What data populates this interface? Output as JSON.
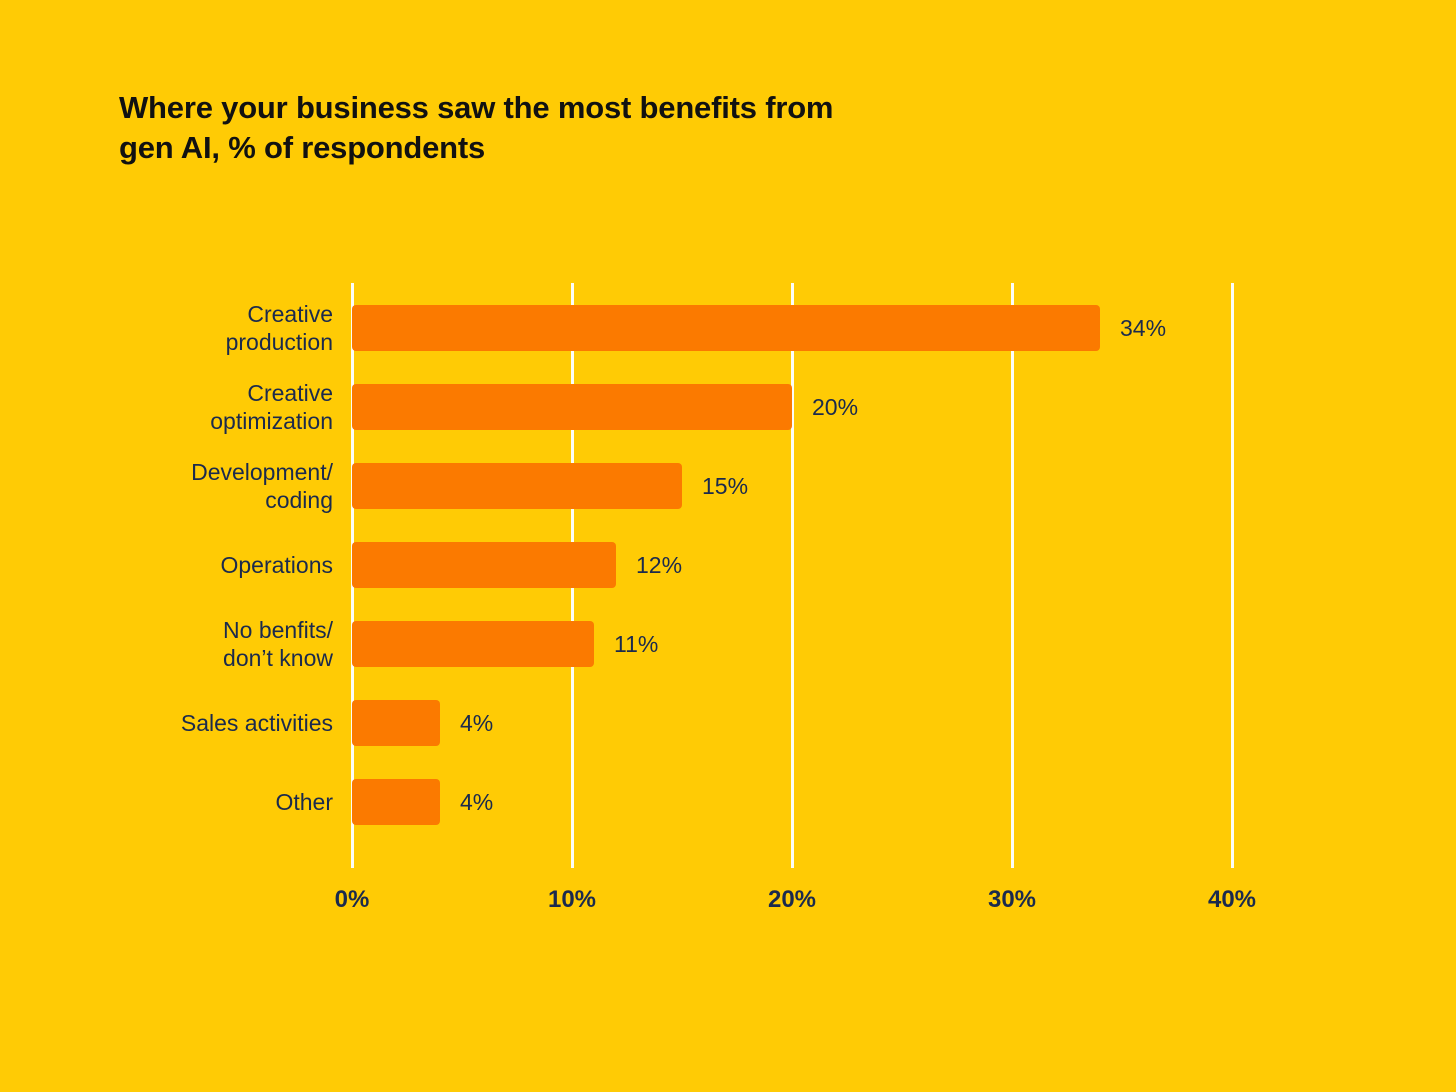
{
  "chart": {
    "title": "Where your business saw the most benefits from\ngen AI, % of respondents"
  },
  "chart_data": {
    "type": "bar",
    "orientation": "horizontal",
    "title": "Where your business saw the most benefits from gen AI, % of respondents",
    "categories": [
      "Creative\nproduction",
      "Creative\noptimization",
      "Development/\ncoding",
      "Operations",
      "No benfits/\ndon’t know",
      "Sales activities",
      "Other"
    ],
    "values": [
      34,
      20,
      15,
      12,
      11,
      4,
      4
    ],
    "value_labels": [
      "34%",
      "20%",
      "15%",
      "12%",
      "11%",
      "4%",
      "4%"
    ],
    "x_ticks": [
      "0%",
      "10%",
      "20%",
      "30%",
      "40%"
    ],
    "xlim": [
      0,
      40
    ],
    "xlabel": "",
    "ylabel": "",
    "grid": "vertical",
    "legend": "none",
    "colors": {
      "background": "#FFCB05",
      "bar": "#FB7A00",
      "label_text": "#1B2A4D",
      "title_text": "#111111",
      "gridline": "#FCFCF7"
    }
  }
}
